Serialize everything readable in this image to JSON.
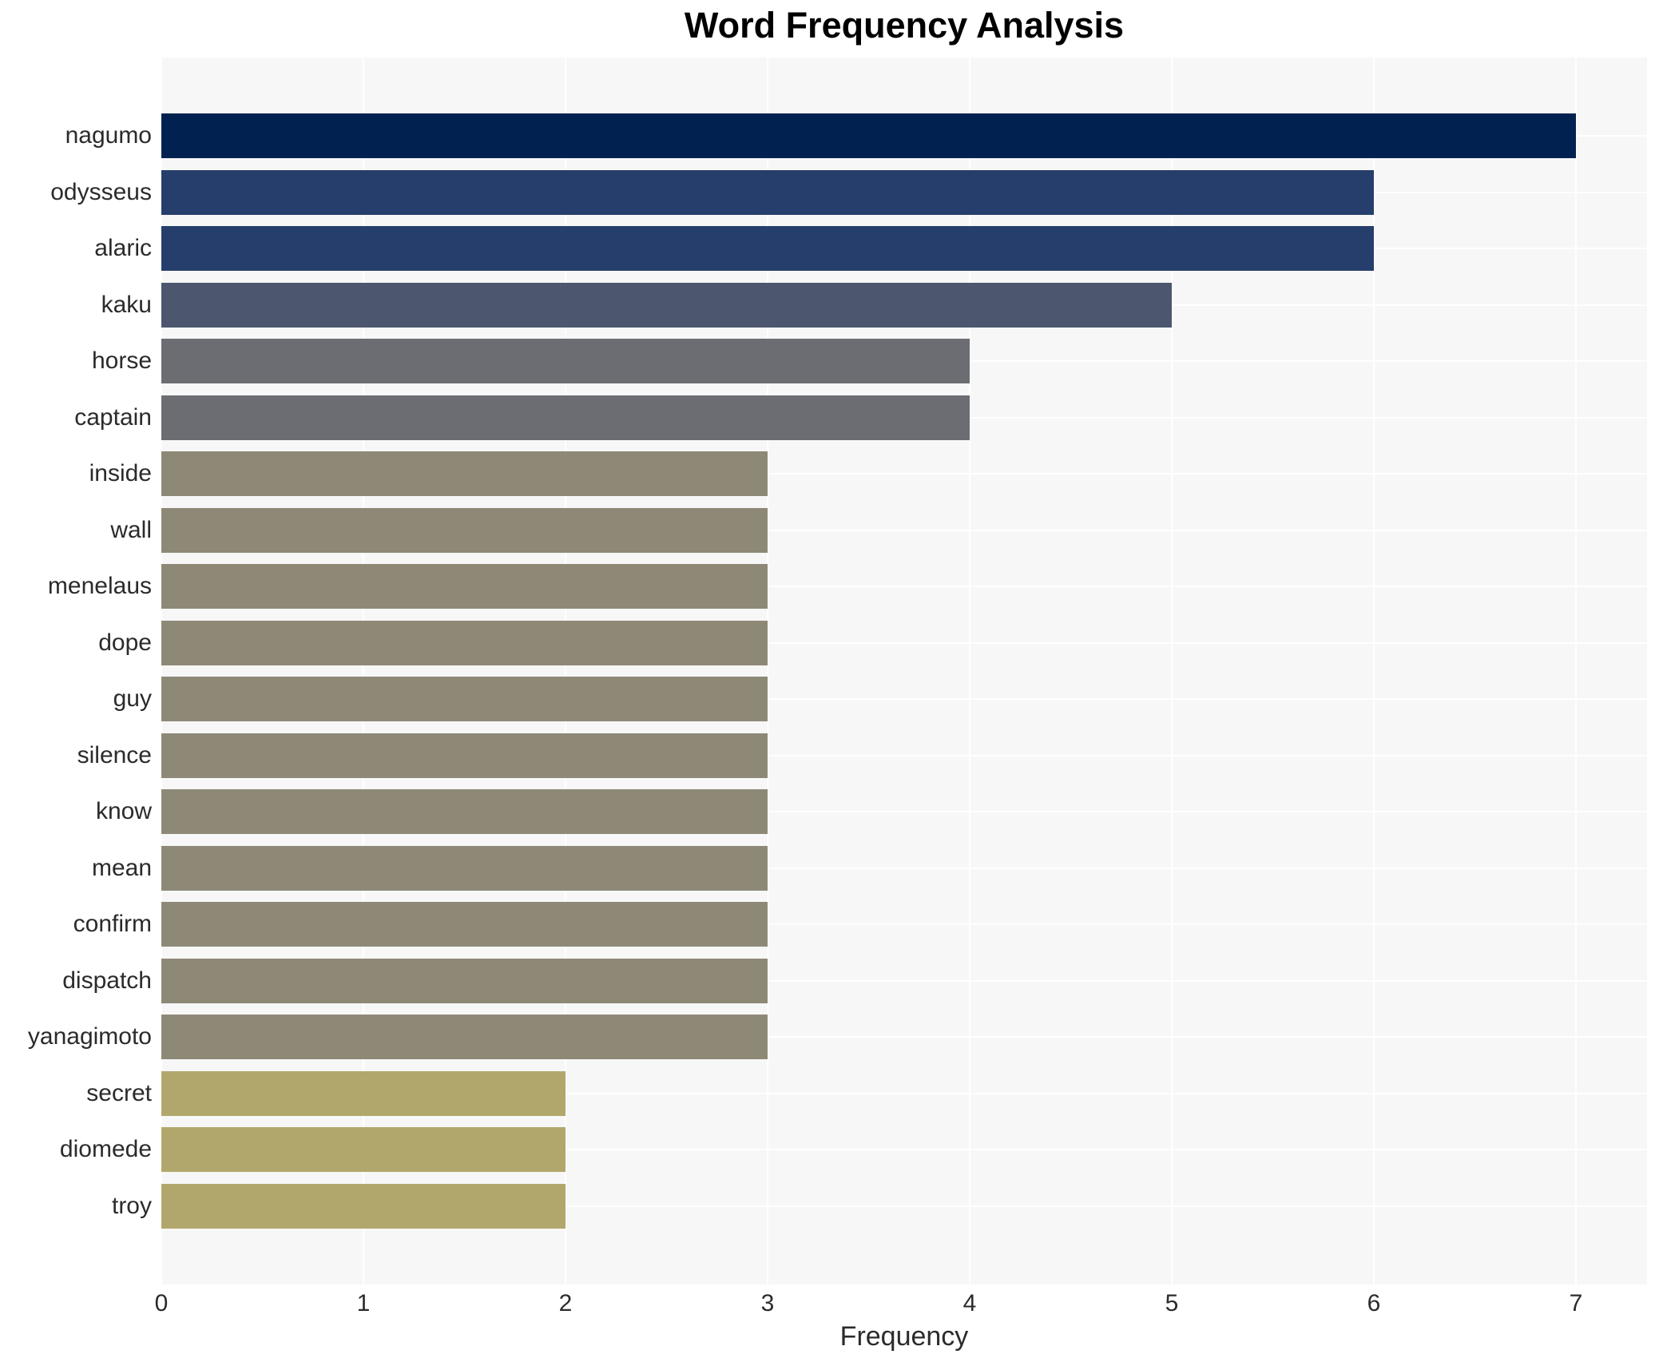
{
  "title": "Word Frequency Analysis",
  "chart_data": {
    "type": "bar",
    "orientation": "horizontal",
    "title": "Word Frequency Analysis",
    "xlabel": "Frequency",
    "ylabel": "",
    "categories": [
      "nagumo",
      "odysseus",
      "alaric",
      "kaku",
      "horse",
      "captain",
      "inside",
      "wall",
      "menelaus",
      "dope",
      "guy",
      "silence",
      "know",
      "mean",
      "confirm",
      "dispatch",
      "yanagimoto",
      "secret",
      "diomede",
      "troy"
    ],
    "values": [
      7,
      6,
      6,
      5,
      4,
      4,
      3,
      3,
      3,
      3,
      3,
      3,
      3,
      3,
      3,
      3,
      3,
      2,
      2,
      2
    ],
    "x_ticks": [
      "0",
      "1",
      "2",
      "3",
      "4",
      "5",
      "6",
      "7"
    ],
    "xlim": [
      0,
      7.35
    ],
    "grid": true,
    "legend": "none",
    "colors": {
      "plot_background": "#f7f7f7",
      "grid": "#ffffff",
      "figure_background": "#ffffff",
      "text": "#2b2b2b",
      "value_color_map": {
        "7": "#012250",
        "6": "#263e6b",
        "5": "#4c566e",
        "4": "#6c6d72",
        "3": "#8e8977",
        "2": "#b1a76c"
      }
    }
  }
}
